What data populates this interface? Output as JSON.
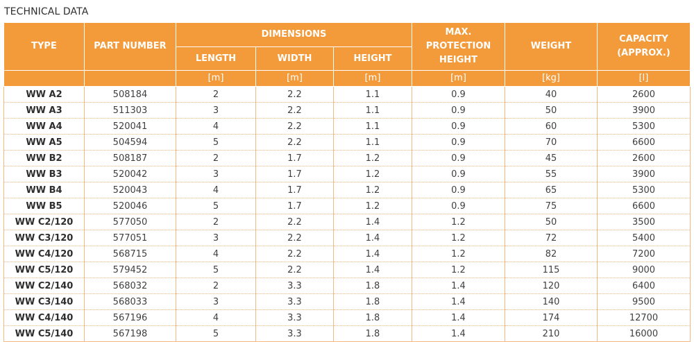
{
  "title": "TECHNICAL DATA",
  "headers": {
    "type": "TYPE",
    "part_number": "PART NUMBER",
    "dimensions": "DIMENSIONS",
    "length": "LENGTH",
    "width": "WIDTH",
    "height": "HEIGHT",
    "max_protection_height": "MAX. PROTECTION HEIGHT",
    "weight": "WEIGHT",
    "capacity": "CAPACITY (APPROX.)"
  },
  "units": [
    "[m]",
    "[m]",
    "[m]",
    "[m]",
    "[kg]",
    "[l]"
  ],
  "rows": [
    [
      "WW A2",
      "508184",
      "2",
      "2.2",
      "1.1",
      "0.9",
      "40",
      "2600"
    ],
    [
      "WW A3",
      "511303",
      "3",
      "2.2",
      "1.1",
      "0.9",
      "50",
      "3900"
    ],
    [
      "WW A4",
      "520041",
      "4",
      "2.2",
      "1.1",
      "0.9",
      "60",
      "5300"
    ],
    [
      "WW A5",
      "504594",
      "5",
      "2.2",
      "1.1",
      "0.9",
      "70",
      "6600"
    ],
    [
      "WW B2",
      "508187",
      "2",
      "1.7",
      "1.2",
      "0.9",
      "45",
      "2600"
    ],
    [
      "WW B3",
      "520042",
      "3",
      "1.7",
      "1.2",
      "0.9",
      "55",
      "3900"
    ],
    [
      "WW B4",
      "520043",
      "4",
      "1.7",
      "1.2",
      "0.9",
      "65",
      "5300"
    ],
    [
      "WW B5",
      "520046",
      "5",
      "1.7",
      "1.2",
      "0.9",
      "75",
      "6600"
    ],
    [
      "WW C2/120",
      "577050",
      "2",
      "2.2",
      "1.4",
      "1.2",
      "50",
      "3500"
    ],
    [
      "WW C3/120",
      "577051",
      "3",
      "2.2",
      "1.4",
      "1.2",
      "72",
      "5400"
    ],
    [
      "WW C4/120",
      "568715",
      "4",
      "2.2",
      "1.4",
      "1.2",
      "82",
      "7200"
    ],
    [
      "WW C5/120",
      "579452",
      "5",
      "2.2",
      "1.4",
      "1.2",
      "115",
      "9000"
    ],
    [
      "WW C2/140",
      "568032",
      "2",
      "3.3",
      "1.8",
      "1.4",
      "120",
      "6400"
    ],
    [
      "WW C3/140",
      "568033",
      "3",
      "3.3",
      "1.8",
      "1.4",
      "140",
      "9500"
    ],
    [
      "WW C4/140",
      "567196",
      "4",
      "3.3",
      "1.8",
      "1.4",
      "174",
      "12700"
    ],
    [
      "WW C5/140",
      "567198",
      "5",
      "3.3",
      "1.8",
      "1.4",
      "210",
      "16000"
    ]
  ],
  "colors": {
    "header_bg": "#f39b3b",
    "header_text": "#ffffff",
    "grid": "#f5b880"
  }
}
